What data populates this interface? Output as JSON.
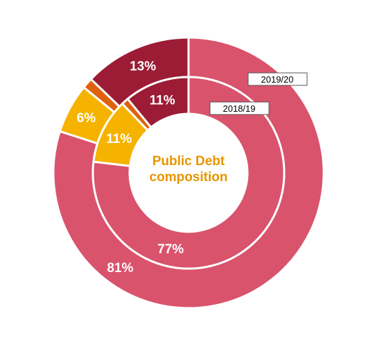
{
  "chart_data": {
    "type": "pie",
    "variant": "nested-donut",
    "title_lines": [
      "Public Debt",
      "composition"
    ],
    "rings": [
      {
        "name": "2019/20",
        "ring": "outer",
        "slices": [
          {
            "value": 81,
            "label": "81%",
            "color": "#D9536C"
          },
          {
            "value": 6,
            "label": "6%",
            "color": "#F5B300"
          },
          {
            "value": 1.3,
            "label": "",
            "color": "#E0620E"
          },
          {
            "value": 13,
            "label": "13%",
            "color": "#9B1C34"
          }
        ]
      },
      {
        "name": "2018/19",
        "ring": "inner",
        "slices": [
          {
            "value": 77,
            "label": "77%",
            "color": "#D9536C"
          },
          {
            "value": 11,
            "label": "11%",
            "color": "#F5B300"
          },
          {
            "value": 1.2,
            "label": "",
            "color": "#E0620E"
          },
          {
            "value": 11,
            "label": "11%",
            "color": "#9B1C34"
          }
        ]
      }
    ],
    "legend": "none"
  }
}
